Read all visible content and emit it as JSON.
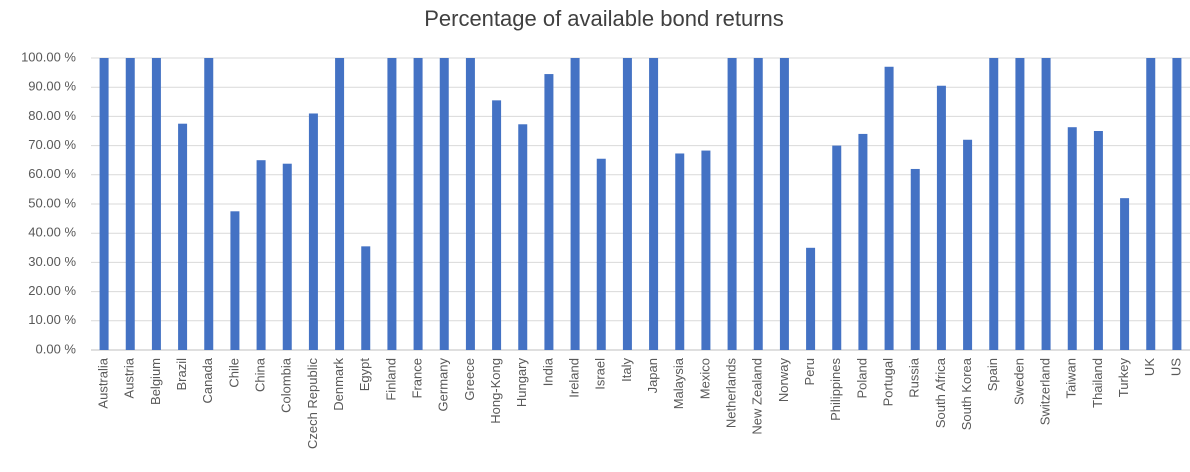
{
  "chart_data": {
    "type": "bar",
    "title": "Percentage of available bond returns",
    "categories": [
      "Australia",
      "Austria",
      "Belgium",
      "Brazil",
      "Canada",
      "Chile",
      "China",
      "Colombia",
      "Czech Republic",
      "Denmark",
      "Egypt",
      "Finland",
      "France",
      "Germany",
      "Greece",
      "Hong-Kong",
      "Hungary",
      "India",
      "Ireland",
      "Israel",
      "Italy",
      "Japan",
      "Malaysia",
      "Mexico",
      "Netherlands",
      "New Zealand",
      "Norway",
      "Peru",
      "Philippines",
      "Poland",
      "Portugal",
      "Russia",
      "South Africa",
      "South Korea",
      "Spain",
      "Sweden",
      "Switzerland",
      "Taiwan",
      "Thailand",
      "Turkey",
      "UK",
      "US"
    ],
    "values": [
      100,
      100,
      100,
      77.5,
      100,
      47.5,
      65,
      63.8,
      81,
      100,
      35.5,
      100,
      100,
      100,
      100,
      85.5,
      77.3,
      94.5,
      100,
      65.5,
      100,
      100,
      67.3,
      68.3,
      100,
      100,
      100,
      35,
      70,
      74,
      97,
      62,
      90.5,
      72,
      100,
      100,
      100,
      76.3,
      75,
      52,
      100,
      100
    ],
    "color": "#4472c4",
    "ylim": [
      0,
      100
    ],
    "yticks": [
      {
        "value": 0,
        "label": "0.00 %"
      },
      {
        "value": 10,
        "label": "10.00 %"
      },
      {
        "value": 20,
        "label": "20.00 %"
      },
      {
        "value": 30,
        "label": "30.00 %"
      },
      {
        "value": 40,
        "label": "40.00 %"
      },
      {
        "value": 50,
        "label": "50.00 %"
      },
      {
        "value": 60,
        "label": "60.00 %"
      },
      {
        "value": 70,
        "label": "70.00 %"
      },
      {
        "value": 80,
        "label": "80.00 %"
      },
      {
        "value": 90,
        "label": "90.00 %"
      },
      {
        "value": 100,
        "label": "100.00 %"
      }
    ],
    "grid": true
  }
}
